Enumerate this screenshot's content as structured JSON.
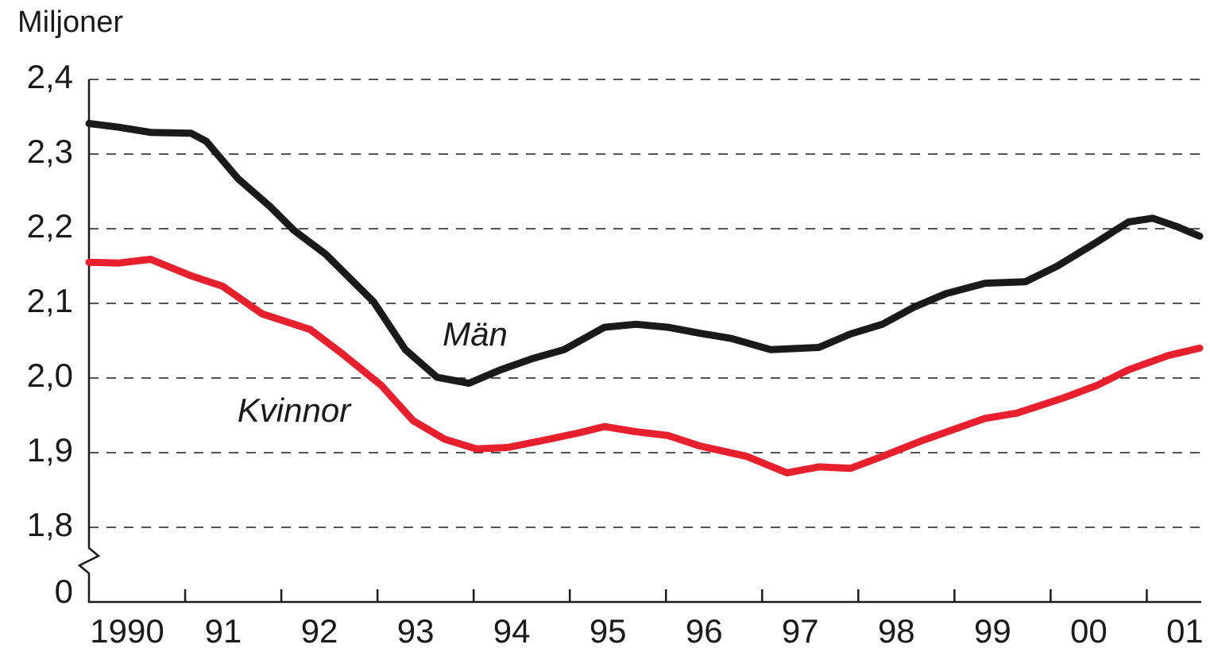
{
  "chart_data": {
    "type": "line",
    "y_axis_label": "Miljoner",
    "xlim": [
      1990,
      2001.55
    ],
    "xticks": [
      {
        "value": 1990,
        "label": "1990"
      },
      {
        "value": 1991,
        "label": "91"
      },
      {
        "value": 1992,
        "label": "92"
      },
      {
        "value": 1993,
        "label": "93"
      },
      {
        "value": 1994,
        "label": "94"
      },
      {
        "value": 1995,
        "label": "95"
      },
      {
        "value": 1996,
        "label": "96"
      },
      {
        "value": 1997,
        "label": "97"
      },
      {
        "value": 1998,
        "label": "98"
      },
      {
        "value": 1999,
        "label": "99"
      },
      {
        "value": 2000,
        "label": "00"
      },
      {
        "value": 2001,
        "label": "01"
      }
    ],
    "ylim": [
      0,
      2.4
    ],
    "axis_break": [
      0,
      1.8
    ],
    "yticks": [
      0,
      {
        "value": 1.8,
        "label": "1,8"
      },
      {
        "value": 1.9,
        "label": "1,9"
      },
      {
        "value": 2.0,
        "label": "2,0"
      },
      {
        "value": 2.1,
        "label": "2,1"
      },
      {
        "value": 2.2,
        "label": "2,2"
      },
      {
        "value": 2.3,
        "label": "2,3"
      },
      {
        "value": 2.4,
        "label": "2,4"
      }
    ],
    "grid": true,
    "series": [
      {
        "name": "Män",
        "color": "#1a1a1a",
        "x": [
          1990.0,
          1990.31,
          1990.64,
          1991.06,
          1991.22,
          1991.55,
          1991.88,
          1992.13,
          1992.46,
          1992.96,
          1993.29,
          1993.62,
          1993.95,
          1994.28,
          1994.61,
          1994.94,
          1995.36,
          1995.69,
          1996.02,
          1996.35,
          1996.68,
          1997.09,
          1997.59,
          1997.92,
          1998.25,
          1998.58,
          1998.91,
          1999.32,
          1999.74,
          2000.07,
          2000.48,
          2000.81,
          2001.06,
          2001.31,
          2001.55
        ],
        "values": [
          2.341,
          2.336,
          2.329,
          2.328,
          2.317,
          2.267,
          2.23,
          2.198,
          2.166,
          2.102,
          2.038,
          2.001,
          1.993,
          2.011,
          2.026,
          2.038,
          2.068,
          2.072,
          2.068,
          2.06,
          2.053,
          2.038,
          2.041,
          2.059,
          2.072,
          2.095,
          2.113,
          2.127,
          2.129,
          2.15,
          2.182,
          2.209,
          2.214,
          2.203,
          2.19
        ]
      },
      {
        "name": "Kvinnor",
        "color": "#e8202e",
        "x": [
          1990.0,
          1990.31,
          1990.64,
          1991.06,
          1991.39,
          1991.8,
          1992.3,
          1992.63,
          1993.04,
          1993.37,
          1993.7,
          1994.03,
          1994.36,
          1994.78,
          1995.11,
          1995.36,
          1995.69,
          1996.02,
          1996.35,
          1996.84,
          1997.26,
          1997.59,
          1997.92,
          1998.25,
          1998.66,
          1999.32,
          1999.65,
          2000.15,
          2000.48,
          2000.81,
          2001.22,
          2001.55
        ],
        "values": [
          2.155,
          2.154,
          2.159,
          2.137,
          2.123,
          2.086,
          2.065,
          2.033,
          1.99,
          1.943,
          1.918,
          1.905,
          1.907,
          1.918,
          1.927,
          1.935,
          1.928,
          1.923,
          1.909,
          1.895,
          1.873,
          1.881,
          1.879,
          1.895,
          1.916,
          1.946,
          1.953,
          1.974,
          1.99,
          2.011,
          2.03,
          2.04
        ]
      }
    ]
  }
}
